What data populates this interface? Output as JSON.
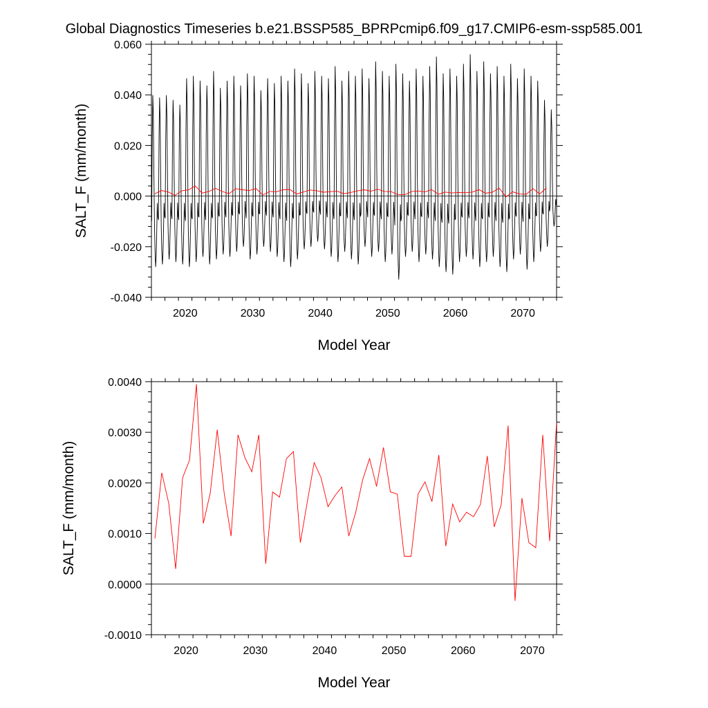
{
  "title": "Global Diagnostics Timeseries b.e21.BSSP585_BPRPcmip6.f09_g17.CMIP6-esm-ssp585.001",
  "colors": {
    "monthly": "#000000",
    "annual": "#ff0000",
    "zero_line": "#000000"
  },
  "chart_data": [
    {
      "type": "line",
      "xlabel": "Model Year",
      "ylabel": "SALT_F (mm/month)",
      "xlim": [
        2015,
        2075
      ],
      "ylim": [
        -0.04,
        0.06
      ],
      "xticks": [
        2020,
        2030,
        2040,
        2050,
        2060,
        2070
      ],
      "xtick_labels": [
        "2020",
        "2030",
        "2040",
        "2050",
        "2060",
        "2070"
      ],
      "yticks": [
        -0.04,
        -0.02,
        0.0,
        0.02,
        0.04,
        0.06
      ],
      "ytick_labels": [
        "-0.040",
        "-0.020",
        "0.000",
        "0.020",
        "0.040",
        "0.060"
      ],
      "grid": false,
      "reference_line_y": 0.0,
      "series": [
        {
          "kind": "monthly",
          "x_start": 2015.04,
          "x_step": 0.0833333,
          "annual_max": [
            0.042,
            0.041,
            0.042,
            0.04,
            0.038,
            0.049,
            0.05,
            0.048,
            0.046,
            0.052,
            0.045,
            0.048,
            0.05,
            0.046,
            0.051,
            0.05,
            0.044,
            0.049,
            0.047,
            0.05,
            0.048,
            0.053,
            0.051,
            0.047,
            0.052,
            0.05,
            0.049,
            0.054,
            0.048,
            0.052,
            0.05,
            0.053,
            0.049,
            0.056,
            0.052,
            0.05,
            0.055,
            0.051,
            0.048,
            0.053,
            0.05,
            0.054,
            0.058,
            0.051,
            0.053,
            0.05,
            0.055,
            0.059,
            0.052,
            0.056,
            0.051,
            0.054,
            0.05,
            0.055,
            0.049,
            0.053,
            0.05,
            0.048,
            0.04,
            0.036
          ],
          "annual_min": [
            -0.028,
            -0.027,
            -0.025,
            -0.026,
            -0.027,
            -0.028,
            -0.026,
            -0.024,
            -0.027,
            -0.025,
            -0.023,
            -0.024,
            -0.022,
            -0.02,
            -0.025,
            -0.023,
            -0.02,
            -0.022,
            -0.024,
            -0.026,
            -0.028,
            -0.025,
            -0.021,
            -0.02,
            -0.018,
            -0.021,
            -0.024,
            -0.026,
            -0.022,
            -0.025,
            -0.027,
            -0.02,
            -0.024,
            -0.022,
            -0.026,
            -0.023,
            -0.033,
            -0.024,
            -0.022,
            -0.026,
            -0.023,
            -0.025,
            -0.028,
            -0.03,
            -0.031,
            -0.026,
            -0.024,
            -0.025,
            -0.028,
            -0.026,
            -0.024,
            -0.028,
            -0.03,
            -0.025,
            -0.023,
            -0.029,
            -0.026,
            -0.022,
            -0.02,
            -0.012
          ]
        },
        {
          "kind": "annual",
          "x": [
            2015.5,
            2016.5,
            2017.5,
            2018.5,
            2019.5,
            2020.5,
            2021.5,
            2022.5,
            2023.5,
            2024.5,
            2025.5,
            2026.5,
            2027.5,
            2028.5,
            2029.5,
            2030.5,
            2031.5,
            2032.5,
            2033.5,
            2034.5,
            2035.5,
            2036.5,
            2037.5,
            2038.5,
            2039.5,
            2040.5,
            2041.5,
            2042.5,
            2043.5,
            2044.5,
            2045.5,
            2046.5,
            2047.5,
            2048.5,
            2049.5,
            2050.5,
            2051.5,
            2052.5,
            2053.5,
            2054.5,
            2055.5,
            2056.5,
            2057.5,
            2058.5,
            2059.5,
            2060.5,
            2061.5,
            2062.5,
            2063.5,
            2064.5,
            2065.5,
            2066.5,
            2067.5,
            2068.5,
            2069.5,
            2070.5,
            2071.5,
            2072.5,
            2073.5
          ],
          "y": [
            0.0009,
            0.0022,
            0.0016,
            0.0003,
            0.0021,
            0.00245,
            0.00395,
            0.0012,
            0.0018,
            0.00305,
            0.0018,
            0.00095,
            0.00295,
            0.0025,
            0.00222,
            0.00295,
            0.0004,
            0.00182,
            0.00172,
            0.00248,
            0.00262,
            0.00082,
            0.00162,
            0.0024,
            0.0021,
            0.00153,
            0.00175,
            0.00192,
            0.00095,
            0.00142,
            0.00206,
            0.00248,
            0.00193,
            0.0027,
            0.00182,
            0.00178,
            0.00055,
            0.00055,
            0.00178,
            0.00202,
            0.00163,
            0.00255,
            0.00075,
            0.00158,
            0.00123,
            0.00142,
            0.00133,
            0.00157,
            0.00253,
            0.00113,
            0.00157,
            0.00313,
            -0.00033,
            0.0017,
            0.00082,
            0.00072,
            0.00295,
            0.00085,
            0.0032
          ]
        }
      ]
    },
    {
      "type": "line",
      "xlabel": "Model Year",
      "ylabel": "SALT_F (mm/month)",
      "xlim": [
        2015,
        2073.5
      ],
      "ylim": [
        -0.001,
        0.004
      ],
      "xticks": [
        2020,
        2030,
        2040,
        2050,
        2060,
        2070
      ],
      "xtick_labels": [
        "2020",
        "2030",
        "2040",
        "2050",
        "2060",
        "2070"
      ],
      "yticks": [
        -0.001,
        0.0,
        0.001,
        0.002,
        0.003,
        0.004
      ],
      "ytick_labels": [
        "-0.0010",
        "0.0000",
        "0.0010",
        "0.0020",
        "0.0030",
        "0.0040"
      ],
      "grid": false,
      "reference_line_y": 0.0,
      "series": [
        {
          "kind": "annual",
          "x": [
            2015.5,
            2016.5,
            2017.5,
            2018.5,
            2019.5,
            2020.5,
            2021.5,
            2022.5,
            2023.5,
            2024.5,
            2025.5,
            2026.5,
            2027.5,
            2028.5,
            2029.5,
            2030.5,
            2031.5,
            2032.5,
            2033.5,
            2034.5,
            2035.5,
            2036.5,
            2037.5,
            2038.5,
            2039.5,
            2040.5,
            2041.5,
            2042.5,
            2043.5,
            2044.5,
            2045.5,
            2046.5,
            2047.5,
            2048.5,
            2049.5,
            2050.5,
            2051.5,
            2052.5,
            2053.5,
            2054.5,
            2055.5,
            2056.5,
            2057.5,
            2058.5,
            2059.5,
            2060.5,
            2061.5,
            2062.5,
            2063.5,
            2064.5,
            2065.5,
            2066.5,
            2067.5,
            2068.5,
            2069.5,
            2070.5,
            2071.5,
            2072.5,
            2073.5
          ],
          "y": [
            0.0009,
            0.0022,
            0.0016,
            0.0003,
            0.0021,
            0.00245,
            0.00395,
            0.0012,
            0.0018,
            0.00305,
            0.0018,
            0.00095,
            0.00295,
            0.0025,
            0.00222,
            0.00295,
            0.0004,
            0.00182,
            0.00172,
            0.00248,
            0.00262,
            0.00082,
            0.00162,
            0.0024,
            0.0021,
            0.00153,
            0.00175,
            0.00192,
            0.00095,
            0.00142,
            0.00206,
            0.00248,
            0.00193,
            0.0027,
            0.00182,
            0.00178,
            0.00055,
            0.00055,
            0.00178,
            0.00202,
            0.00163,
            0.00255,
            0.00075,
            0.00158,
            0.00123,
            0.00142,
            0.00133,
            0.00157,
            0.00253,
            0.00113,
            0.00157,
            0.00313,
            -0.00033,
            0.0017,
            0.00082,
            0.00072,
            0.00295,
            0.00085,
            0.0032
          ]
        }
      ]
    }
  ]
}
